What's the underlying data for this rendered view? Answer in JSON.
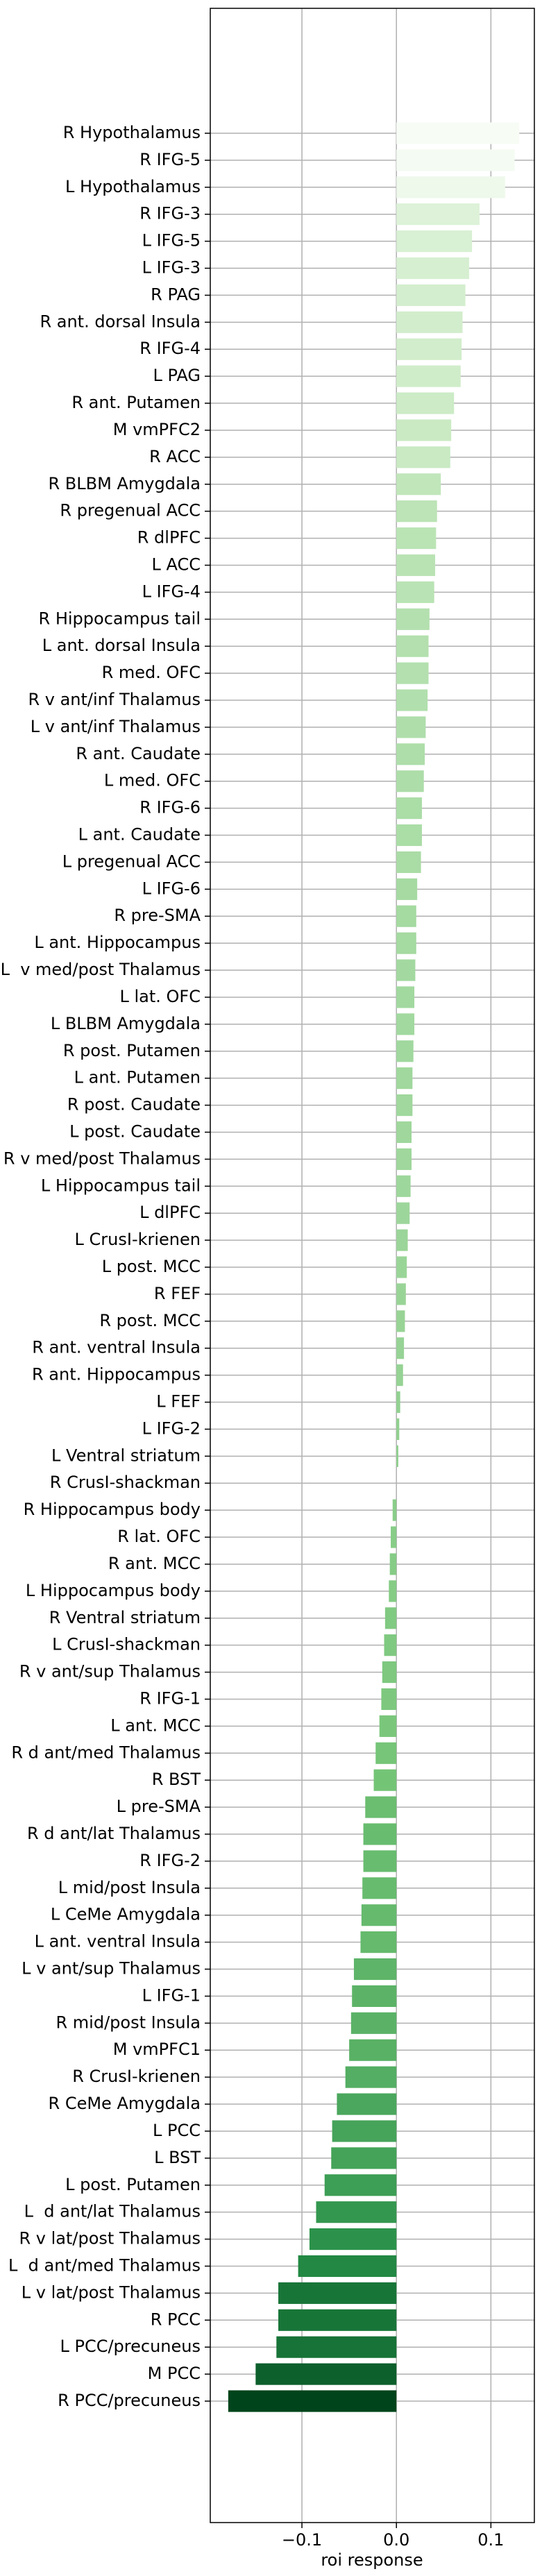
{
  "chart_data": {
    "type": "barh",
    "x_label": "roi response",
    "categories": [
      "R Hypothalamus",
      "R IFG-5",
      "L Hypothalamus",
      "R IFG-3",
      "L IFG-5",
      "L IFG-3",
      "R PAG",
      "R ant. dorsal Insula",
      "R IFG-4",
      "L PAG",
      "R ant. Putamen",
      "M vmPFC2",
      "R ACC",
      "R BLBM Amygdala",
      "R pregenual ACC",
      "R dlPFC",
      "L ACC",
      "L IFG-4",
      "R Hippocampus tail",
      "L ant. dorsal Insula",
      "R med. OFC",
      "R v ant/inf Thalamus",
      "L v ant/inf Thalamus",
      "R ant. Caudate",
      "L med. OFC",
      "R IFG-6",
      "L ant. Caudate",
      "L pregenual ACC",
      "L IFG-6",
      "R pre-SMA",
      "L ant. Hippocampus",
      "L  v med/post Thalamus",
      "L lat. OFC",
      "L BLBM Amygdala",
      "R post. Putamen",
      "L ant. Putamen",
      "R post. Caudate",
      "L post. Caudate",
      "R v med/post Thalamus",
      "L Hippocampus tail",
      "L dlPFC",
      "L CrusI-krienen",
      "L post. MCC",
      "R FEF",
      "R post. MCC",
      "R ant. ventral Insula",
      "R ant. Hippocampus",
      "L FEF",
      "L IFG-2",
      "L Ventral striatum",
      "R CrusI-shackman",
      "R Hippocampus body",
      "R lat. OFC",
      "R ant. MCC",
      "L Hippocampus body",
      "R Ventral striatum",
      "L CrusI-shackman",
      "R v ant/sup Thalamus",
      "R IFG-1",
      "L ant. MCC",
      "R d ant/med Thalamus",
      "R BST",
      "L pre-SMA",
      "R d ant/lat Thalamus",
      "R IFG-2",
      "L mid/post Insula",
      "L CeMe Amygdala",
      "L ant. ventral Insula",
      "L v ant/sup Thalamus",
      "L IFG-1",
      "R mid/post Insula",
      "M vmPFC1",
      "R CrusI-krienen",
      "R CeMe Amygdala",
      "L PCC",
      "L BST",
      "L post. Putamen",
      "L  d ant/lat Thalamus",
      "R v lat/post Thalamus",
      "L  d ant/med Thalamus",
      "L v lat/post Thalamus",
      "R PCC",
      "L PCC/precuneus",
      "M PCC",
      "R PCC/precuneus"
    ],
    "values": [
      0.13,
      0.125,
      0.115,
      0.088,
      0.08,
      0.077,
      0.073,
      0.07,
      0.069,
      0.068,
      0.061,
      0.058,
      0.057,
      0.047,
      0.043,
      0.042,
      0.041,
      0.04,
      0.035,
      0.034,
      0.034,
      0.033,
      0.031,
      0.03,
      0.029,
      0.027,
      0.027,
      0.026,
      0.022,
      0.021,
      0.021,
      0.02,
      0.019,
      0.019,
      0.018,
      0.017,
      0.017,
      0.016,
      0.016,
      0.015,
      0.014,
      0.012,
      0.011,
      0.01,
      0.009,
      0.008,
      0.007,
      0.004,
      0.003,
      0.002,
      0.0,
      -0.004,
      -0.006,
      -0.007,
      -0.008,
      -0.012,
      -0.013,
      -0.015,
      -0.016,
      -0.018,
      -0.022,
      -0.024,
      -0.033,
      -0.035,
      -0.035,
      -0.036,
      -0.037,
      -0.038,
      -0.045,
      -0.047,
      -0.048,
      -0.05,
      -0.054,
      -0.063,
      -0.068,
      -0.069,
      -0.076,
      -0.085,
      -0.092,
      -0.104,
      -0.125,
      -0.125,
      -0.127,
      -0.149,
      -0.178
    ],
    "color_scale": [
      "#f7fcf5",
      "#c7e9c0",
      "#74c476",
      "#238b45",
      "#00441b"
    ],
    "xlim": [
      -0.197,
      0.146
    ],
    "xticks": [
      {
        "value": -0.1,
        "label": "−0.1"
      },
      {
        "value": 0,
        "label": "0.0"
      },
      0.1
    ],
    "grid": true
  }
}
